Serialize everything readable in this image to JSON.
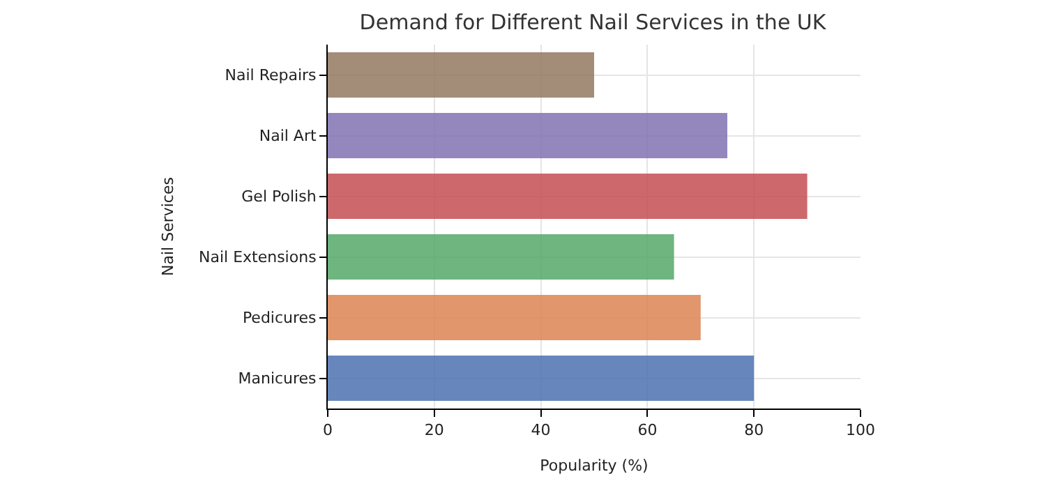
{
  "chart_data": {
    "type": "bar",
    "orientation": "horizontal",
    "title": "Demand for Different Nail Services in the UK",
    "xlabel": "Popularity (%)",
    "ylabel": "Nail Services",
    "categories": [
      "Nail Repairs",
      "Nail Art",
      "Gel Polish",
      "Nail Extensions",
      "Pedicures",
      "Manicures"
    ],
    "values": [
      50,
      75,
      90,
      65,
      70,
      80
    ],
    "colors": [
      "#937860",
      "#8172b3",
      "#c44e52",
      "#55a868",
      "#dd8452",
      "#4c72b0"
    ],
    "xlim": [
      0,
      100
    ],
    "xticks": [
      0,
      20,
      40,
      60,
      80,
      100
    ],
    "grid": true
  }
}
